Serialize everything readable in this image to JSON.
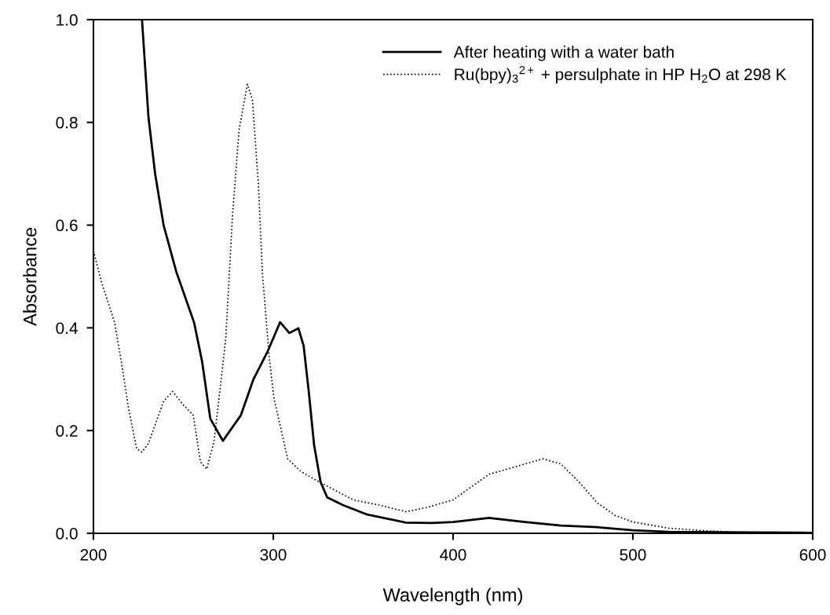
{
  "chart_data": {
    "type": "line",
    "xlabel": "Wavelength (nm)",
    "ylabel": "Absorbance",
    "xlim": [
      200,
      600
    ],
    "ylim": [
      0,
      1.0
    ],
    "xticks": [
      200,
      300,
      400,
      500,
      600
    ],
    "yticks": [
      {
        "value": 0,
        "label": "0.0"
      },
      0.2,
      0.4,
      0.6,
      0.8,
      {
        "value": 1.0,
        "label": "1.0"
      }
    ],
    "legend": "top right",
    "grid": false,
    "marker": "none",
    "series": [
      {
        "name": "After heating with a water bath",
        "color": "#000000",
        "line_style": "solid",
        "x": [
          227,
          230.6,
          234.3,
          239,
          246,
          256,
          260.4,
          265,
          272,
          282,
          289,
          297,
          303.8,
          308.9,
          314,
          316.9,
          319.8,
          322.7,
          326.3,
          330,
          338.7,
          351.8,
          373.7,
          388,
          400,
          420,
          440,
          460,
          480,
          500,
          520,
          550,
          600
        ],
        "values": [
          1.0,
          0.81,
          0.7,
          0.6,
          0.51,
          0.41,
          0.335,
          0.223,
          0.18,
          0.23,
          0.3,
          0.355,
          0.411,
          0.39,
          0.399,
          0.365,
          0.274,
          0.172,
          0.1,
          0.07,
          0.055,
          0.037,
          0.021,
          0.02,
          0.022,
          0.03,
          0.022,
          0.015,
          0.012,
          0.006,
          0.003,
          0.002,
          0.001
        ]
      },
      {
        "name": "Ru(bpy)$_{3}$$^{2+}$ + persulphate in HP H$_{2}$O at 298 K",
        "color": "#000000",
        "line_style": "dotted",
        "x": [
          200,
          204.4,
          211.8,
          215.7,
          219.4,
          224,
          226.9,
          230.6,
          239,
          244,
          250,
          255.5,
          259.5,
          263,
          267,
          270.7,
          273.6,
          277.4,
          281,
          285.6,
          288.4,
          291.7,
          294,
          297.8,
          300.4,
          308,
          315.5,
          325.6,
          344.5,
          359,
          373.7,
          385,
          400,
          410,
          420,
          435,
          450,
          460,
          470,
          480,
          490,
          500,
          520,
          540,
          560,
          600
        ],
        "values": [
          0.55,
          0.49,
          0.41,
          0.33,
          0.246,
          0.165,
          0.158,
          0.175,
          0.257,
          0.276,
          0.25,
          0.23,
          0.139,
          0.125,
          0.178,
          0.289,
          0.38,
          0.622,
          0.786,
          0.874,
          0.844,
          0.681,
          0.505,
          0.341,
          0.263,
          0.145,
          0.12,
          0.1,
          0.065,
          0.055,
          0.042,
          0.05,
          0.065,
          0.09,
          0.115,
          0.13,
          0.145,
          0.135,
          0.1,
          0.06,
          0.035,
          0.022,
          0.01,
          0.005,
          0.002,
          0.001
        ]
      }
    ]
  }
}
